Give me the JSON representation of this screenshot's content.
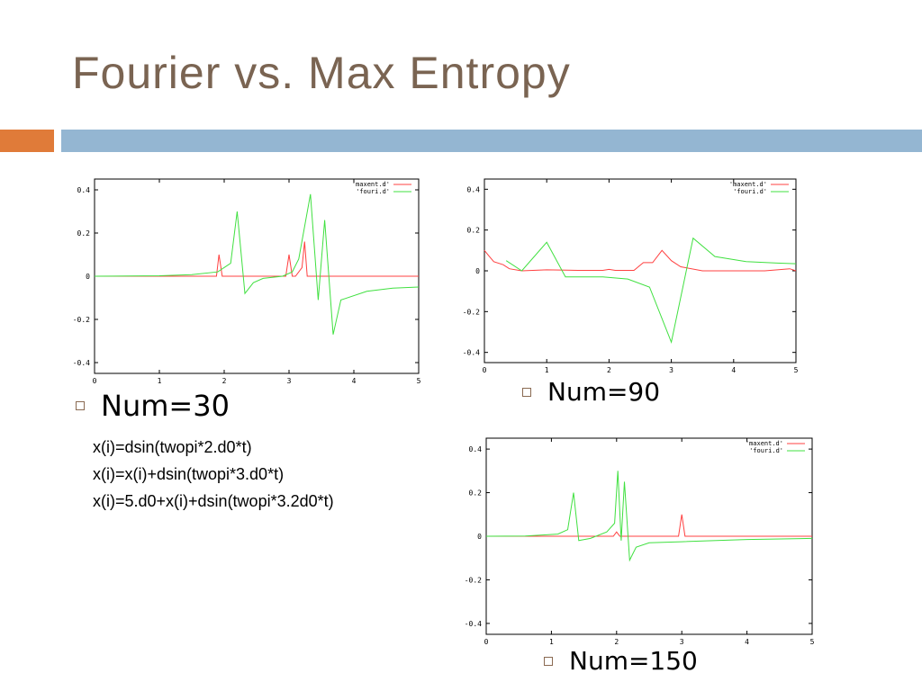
{
  "title": "Fourier vs. Max Entropy",
  "bullets": {
    "num30": "Num=30",
    "num90": "Num=90",
    "num150": "Num=150"
  },
  "formulas": [
    "x(i)=dsin(twopi*2.d0*t)",
    "x(i)=x(i)+dsin(twopi*3.d0*t)",
    "x(i)=5.d0+x(i)+dsin(twopi*3.2d0*t)"
  ],
  "colors": {
    "title": "#7a6452",
    "orange_bar": "#e07b39",
    "blue_bar": "#94b6d2",
    "maxent": "#ff4040",
    "fouri": "#40e040"
  },
  "chart_data": [
    {
      "type": "line",
      "xlim": [
        0,
        5
      ],
      "ylim": [
        -0.45,
        0.45
      ],
      "xticks": [
        "0",
        "1",
        "2",
        "3",
        "4",
        "5"
      ],
      "yticks": [
        "0.4",
        "0.2",
        "0",
        "-0.2",
        "-0.4"
      ],
      "series": [
        {
          "name": "'maxent.d'",
          "x": [
            0,
            1.88,
            1.92,
            1.97,
            2.05,
            2.95,
            3.0,
            3.05,
            3.1,
            3.2,
            3.24,
            3.28,
            3.4,
            5
          ],
          "y": [
            0,
            0,
            0.1,
            0,
            0,
            0,
            0.1,
            0,
            0,
            0.04,
            0.16,
            0,
            0,
            0
          ]
        },
        {
          "name": "'fouri.d'",
          "x": [
            0,
            1.0,
            1.5,
            1.9,
            2.1,
            2.2,
            2.32,
            2.45,
            2.6,
            2.9,
            3.05,
            3.15,
            3.33,
            3.45,
            3.55,
            3.68,
            3.8,
            4.2,
            4.6,
            5
          ],
          "y": [
            0,
            0.002,
            0.007,
            0.02,
            0.06,
            0.3,
            -0.08,
            -0.03,
            -0.01,
            0,
            0.02,
            0.08,
            0.38,
            -0.11,
            0.26,
            -0.27,
            -0.11,
            -0.07,
            -0.055,
            -0.05
          ]
        }
      ]
    },
    {
      "type": "line",
      "xlim": [
        0,
        5
      ],
      "ylim": [
        -0.45,
        0.45
      ],
      "xticks": [
        "0",
        "1",
        "2",
        "3",
        "4",
        "5"
      ],
      "yticks": [
        "0.4",
        "0.2",
        "0",
        "-0.2",
        "-0.4"
      ],
      "series": [
        {
          "name": "'maxent.d'",
          "x": [
            0,
            0.08,
            0.15,
            0.3,
            0.4,
            0.6,
            1.0,
            1.5,
            1.9,
            2.0,
            2.1,
            2.4,
            2.55,
            2.7,
            2.85,
            3.0,
            3.15,
            3.5,
            4.0,
            4.5,
            4.9,
            5.0
          ],
          "y": [
            0.1,
            0.07,
            0.045,
            0.03,
            0.01,
            0,
            0.005,
            0.002,
            0.002,
            0.007,
            0.002,
            0.002,
            0.04,
            0.04,
            0.1,
            0.05,
            0.02,
            0,
            0,
            0,
            0.01,
            0
          ]
        },
        {
          "name": "'fouri.d'",
          "x": [
            0.35,
            0.6,
            1.0,
            1.3,
            1.9,
            2.3,
            2.65,
            3.0,
            3.35,
            3.7,
            4.2,
            4.7,
            5.0
          ],
          "y": [
            0.05,
            0,
            0.14,
            -0.03,
            -0.03,
            -0.04,
            -0.08,
            -0.35,
            0.16,
            0.07,
            0.045,
            0.038,
            0.035
          ]
        }
      ]
    },
    {
      "type": "line",
      "xlim": [
        0,
        5
      ],
      "ylim": [
        -0.45,
        0.45
      ],
      "xticks": [
        "0",
        "1",
        "2",
        "3",
        "4",
        "5"
      ],
      "yticks": [
        "0.4",
        "0.2",
        "0",
        "-0.2",
        "-0.4"
      ],
      "series": [
        {
          "name": "'maxent.d'",
          "x": [
            0,
            1.95,
            2.0,
            2.05,
            2.95,
            3.0,
            3.05,
            5
          ],
          "y": [
            0,
            0,
            0.02,
            0,
            0,
            0.1,
            0,
            0
          ]
        },
        {
          "name": "'fouri.d'",
          "x": [
            0,
            0.6,
            1.1,
            1.25,
            1.34,
            1.42,
            1.6,
            1.85,
            1.97,
            2.02,
            2.07,
            2.12,
            2.2,
            2.3,
            2.5,
            3.0,
            4.0,
            5.0
          ],
          "y": [
            0,
            0.001,
            0.01,
            0.03,
            0.2,
            -0.02,
            -0.01,
            0.02,
            0.06,
            0.3,
            -0.02,
            0.25,
            -0.11,
            -0.05,
            -0.03,
            -0.025,
            -0.015,
            -0.01
          ]
        }
      ]
    }
  ]
}
